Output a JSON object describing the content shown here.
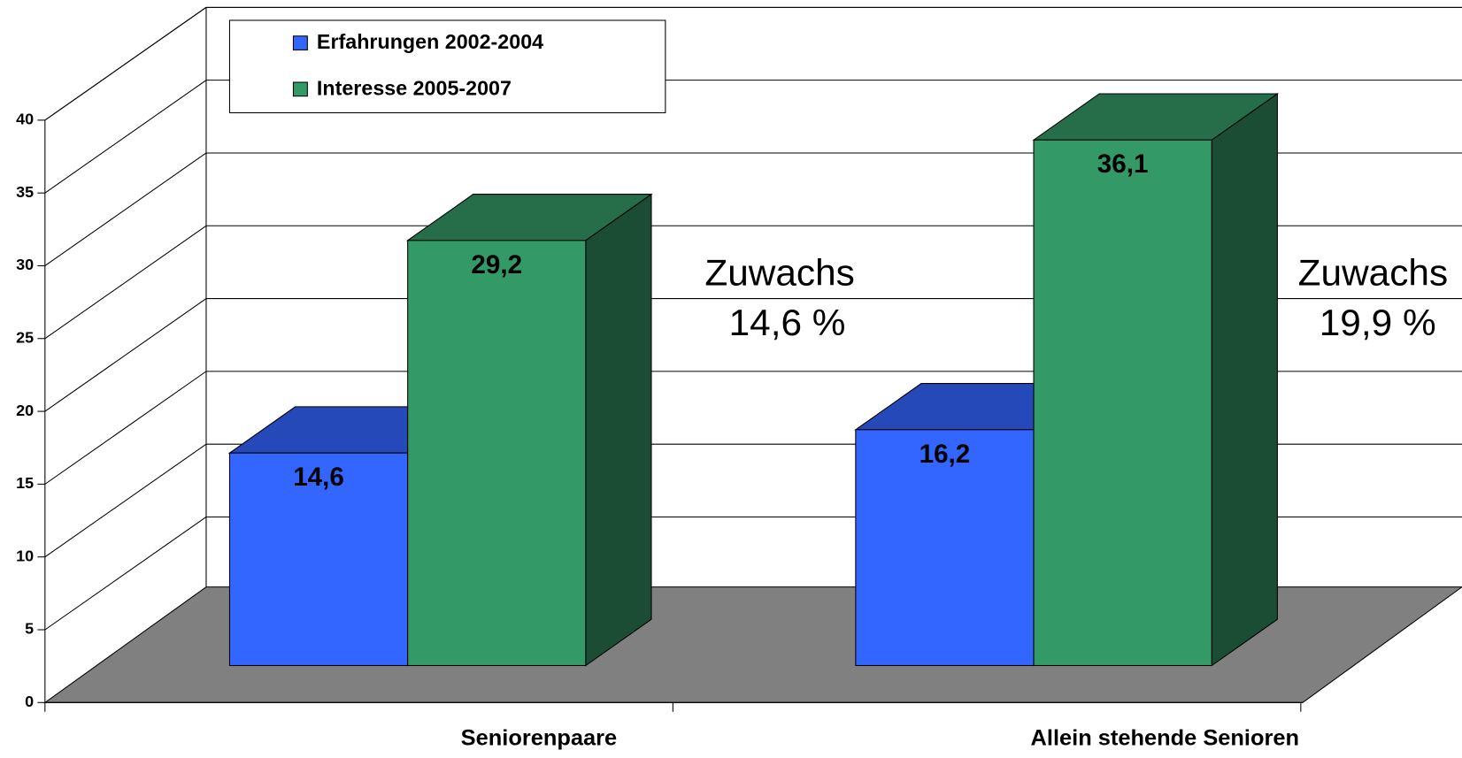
{
  "chart_data": {
    "type": "bar3d",
    "categories": [
      "Seniorenpaare",
      "Allein stehende Senioren"
    ],
    "series": [
      {
        "name": "Erfahrungen 2002-2004",
        "color": "#3366ff",
        "values": [
          14.6,
          16.2
        ],
        "value_labels": [
          "14,6",
          "16,2"
        ]
      },
      {
        "name": "Interesse 2005-2007",
        "color": "#339966",
        "values": [
          29.2,
          36.1
        ],
        "value_labels": [
          "29,2",
          "36,1"
        ]
      }
    ],
    "ylim": [
      0,
      40
    ],
    "yticks": [
      0,
      5,
      10,
      15,
      20,
      25,
      30,
      35,
      40
    ],
    "grid": true,
    "annotations": [
      [
        "Zuwachs",
        "14,6 %"
      ],
      [
        "Zuwachs",
        "19,9 %"
      ]
    ],
    "legend": "top-left"
  }
}
